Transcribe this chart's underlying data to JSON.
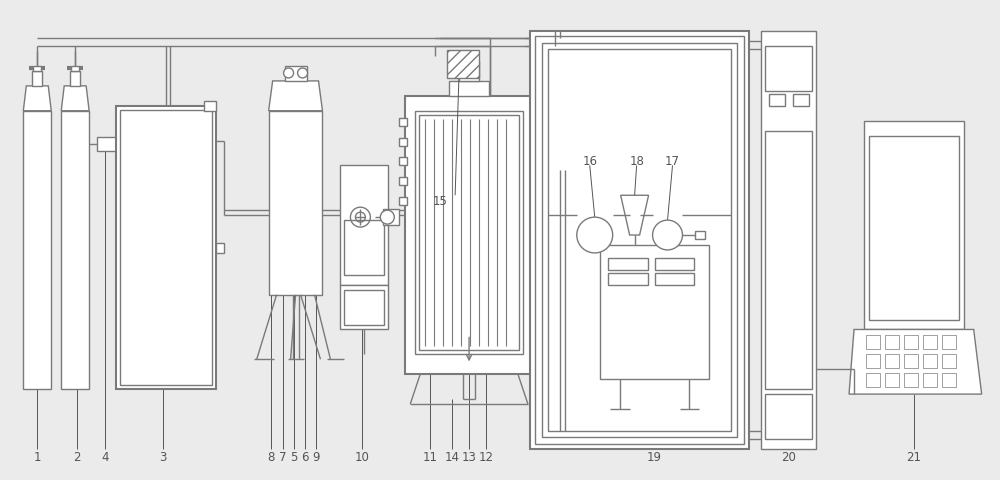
{
  "bg_color": "#ebebeb",
  "lc": "#7a7a7a",
  "lw": 1.0,
  "tlw": 1.5,
  "fig_width": 10.0,
  "fig_height": 4.81,
  "label_fs": 8.5,
  "label_color": "#555555"
}
